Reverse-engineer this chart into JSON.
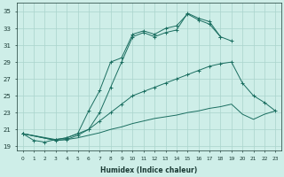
{
  "xlabel": "Humidex (Indice chaleur)",
  "background_color": "#ceeee8",
  "line_color": "#1a6e60",
  "grid_color": "#aad4cc",
  "xlim": [
    -0.5,
    23.5
  ],
  "ylim": [
    18.5,
    36.0
  ],
  "xticks": [
    0,
    1,
    2,
    3,
    4,
    5,
    6,
    7,
    8,
    9,
    10,
    11,
    12,
    13,
    14,
    15,
    16,
    17,
    18,
    19,
    20,
    21,
    22,
    23
  ],
  "yticks": [
    19,
    21,
    23,
    25,
    27,
    29,
    31,
    33,
    35
  ],
  "series": [
    {
      "x": [
        0,
        1,
        2,
        3,
        4,
        5,
        6,
        7,
        8,
        9,
        10,
        11,
        12,
        13,
        14,
        15,
        16,
        17,
        18
      ],
      "y": [
        20.5,
        19.7,
        19.5,
        19.8,
        20.0,
        20.5,
        23.2,
        25.6,
        29.0,
        29.5,
        32.3,
        32.7,
        32.3,
        33.0,
        33.3,
        34.7,
        34.0,
        33.5,
        32.0
      ],
      "marker": "+"
    },
    {
      "x": [
        0,
        3,
        4,
        5,
        6,
        7,
        8,
        9,
        10,
        11,
        12,
        13,
        14,
        15,
        16,
        17,
        18,
        19
      ],
      "y": [
        20.5,
        19.7,
        19.8,
        20.3,
        21.0,
        23.0,
        26.0,
        29.0,
        32.0,
        32.5,
        32.0,
        32.5,
        32.8,
        34.8,
        34.2,
        33.8,
        32.0,
        31.5
      ],
      "marker": "+"
    },
    {
      "x": [
        0,
        3,
        4,
        5,
        6,
        7,
        8,
        9,
        10,
        11,
        12,
        13,
        14,
        15,
        16,
        17,
        18,
        19,
        20,
        21,
        22,
        23
      ],
      "y": [
        20.5,
        19.8,
        20.0,
        20.5,
        21.0,
        22.0,
        23.0,
        24.0,
        25.0,
        25.5,
        26.0,
        26.5,
        27.0,
        27.5,
        28.0,
        28.5,
        28.8,
        29.0,
        26.5,
        25.0,
        24.2,
        23.2
      ],
      "marker": "+"
    },
    {
      "x": [
        0,
        3,
        4,
        5,
        6,
        7,
        8,
        9,
        10,
        11,
        12,
        13,
        14,
        15,
        16,
        17,
        18,
        19,
        20,
        21,
        22,
        23
      ],
      "y": [
        20.5,
        19.7,
        19.8,
        20.0,
        20.3,
        20.6,
        21.0,
        21.3,
        21.7,
        22.0,
        22.3,
        22.5,
        22.7,
        23.0,
        23.2,
        23.5,
        23.7,
        24.0,
        22.8,
        22.2,
        22.8,
        23.2
      ],
      "marker": null
    }
  ]
}
